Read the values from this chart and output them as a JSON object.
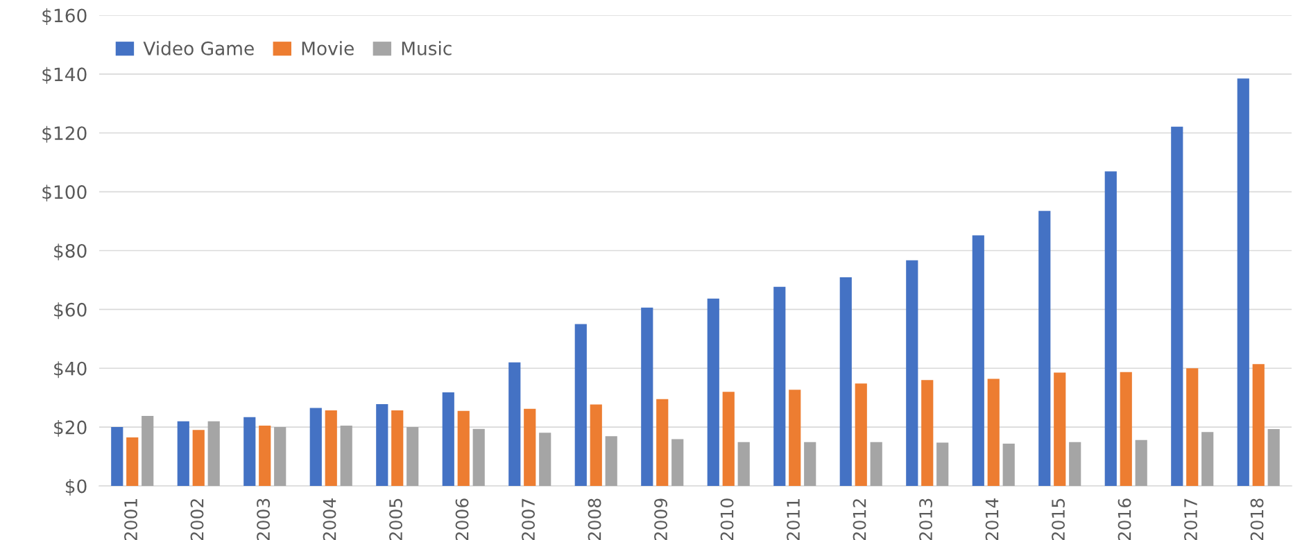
{
  "chart_data": {
    "type": "bar",
    "categories": [
      "2001",
      "2002",
      "2003",
      "2004",
      "2005",
      "2006",
      "2007",
      "2008",
      "2009",
      "2010",
      "2011",
      "2012",
      "2013",
      "2014",
      "2015",
      "2016",
      "2017",
      "2018"
    ],
    "series": [
      {
        "name": "Video Game",
        "color": "#4472c4",
        "values": [
          20.0,
          22.0,
          23.4,
          26.5,
          27.8,
          31.8,
          42.0,
          55.0,
          60.6,
          63.7,
          67.7,
          70.9,
          76.7,
          85.2,
          93.5,
          106.9,
          122.1,
          138.5
        ]
      },
      {
        "name": "Movie",
        "color": "#ed7d31",
        "values": [
          16.5,
          19.0,
          20.5,
          25.7,
          25.7,
          25.5,
          26.2,
          27.7,
          29.5,
          32.0,
          32.7,
          34.8,
          36.0,
          36.4,
          38.5,
          38.7,
          40.0,
          41.4
        ]
      },
      {
        "name": "Music",
        "color": "#a5a5a5",
        "values": [
          23.8,
          22.0,
          20.0,
          20.5,
          20.0,
          19.4,
          18.1,
          16.9,
          15.9,
          14.9,
          14.9,
          14.9,
          14.7,
          14.4,
          14.9,
          15.6,
          18.3,
          19.3
        ]
      }
    ],
    "ylim": [
      0,
      160
    ],
    "yticks": [
      {
        "value": 0,
        "label": "$0"
      },
      {
        "value": 20,
        "label": "$20"
      },
      {
        "value": 40,
        "label": "$40"
      },
      {
        "value": 60,
        "label": "$60"
      },
      {
        "value": 80,
        "label": "$80"
      },
      {
        "value": 100,
        "label": "$100"
      },
      {
        "value": 120,
        "label": "$120"
      },
      {
        "value": 140,
        "label": "$140"
      },
      {
        "value": 160,
        "label": "$160"
      }
    ],
    "grid": "y",
    "legend": "top left"
  }
}
